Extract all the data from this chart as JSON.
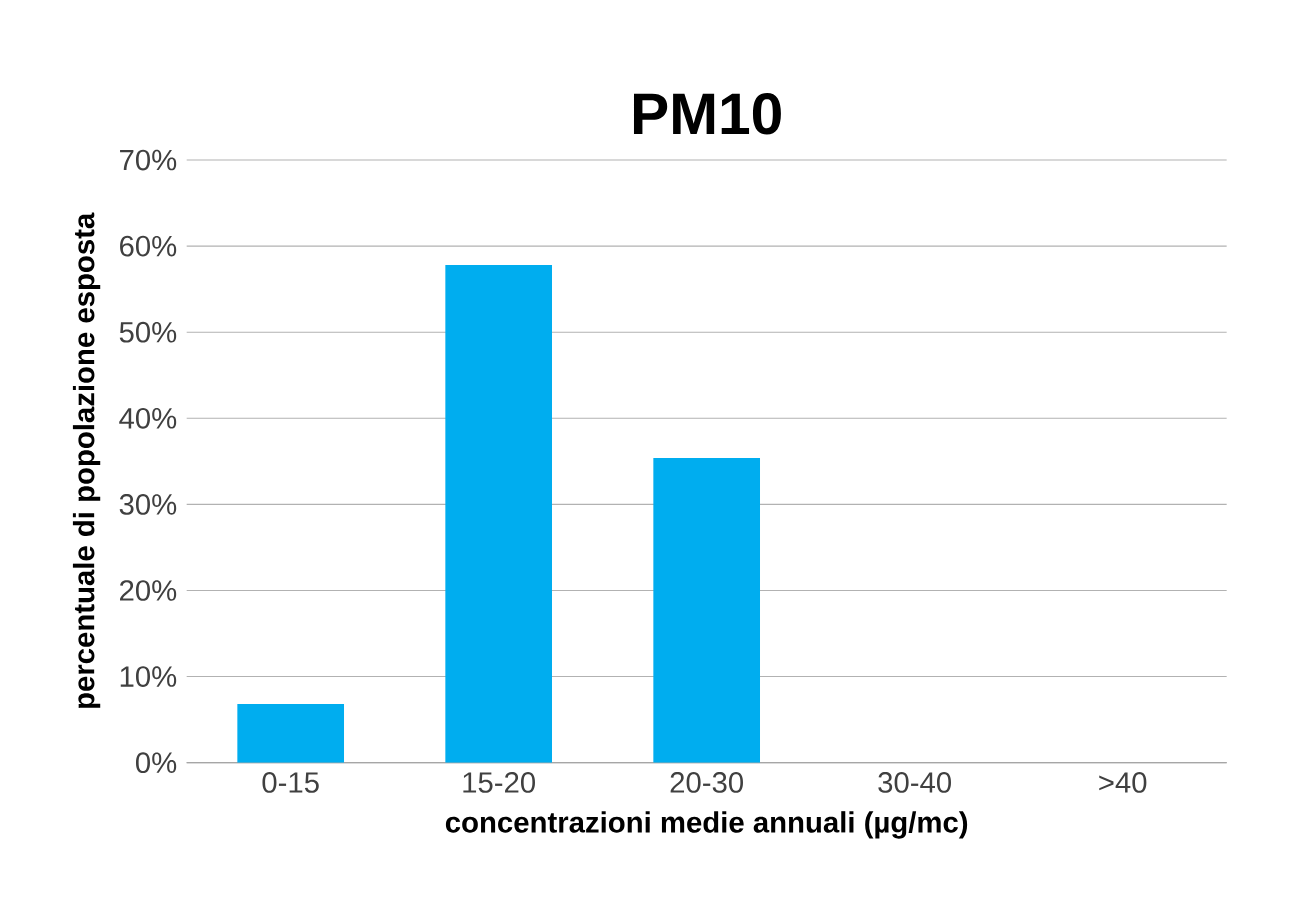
{
  "chart_data": {
    "type": "bar",
    "title": "PM10",
    "xlabel": "concentrazioni medie annuali (µg/mc)",
    "ylabel": "percentuale di popolazione esposta",
    "categories": [
      "0-15",
      "15-20",
      "20-30",
      "30-40",
      ">40"
    ],
    "values": [
      6.8,
      57.8,
      35.4,
      0,
      0
    ],
    "color": "#00adef",
    "ylim": [
      0,
      70
    ],
    "yticks": [
      {
        "value": 0,
        "label": "0%"
      },
      {
        "value": 10,
        "label": "10%"
      },
      {
        "value": 20,
        "label": "20%"
      },
      {
        "value": 30,
        "label": "30%"
      },
      {
        "value": 40,
        "label": "40%"
      },
      {
        "value": 50,
        "label": "50%"
      },
      {
        "value": 60,
        "label": "60%"
      },
      {
        "value": 70,
        "label": "70%"
      }
    ],
    "grid": "y"
  }
}
